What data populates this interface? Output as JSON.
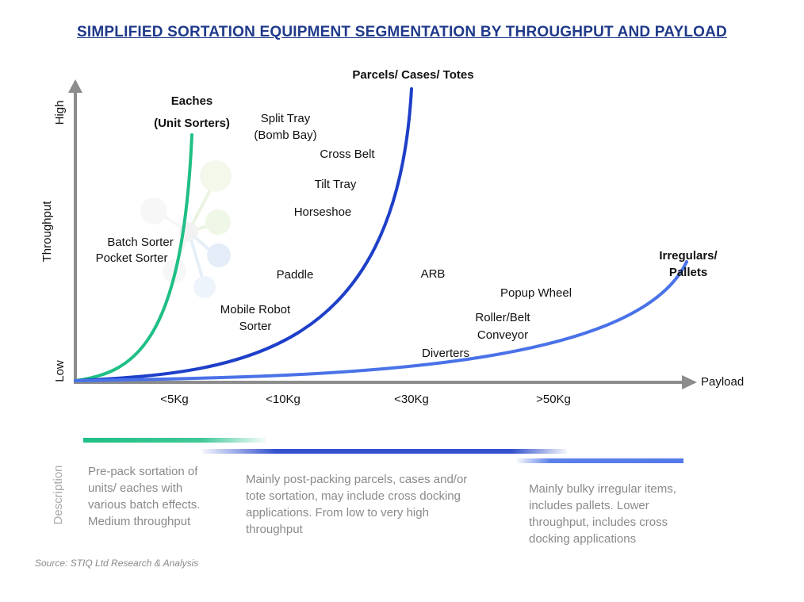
{
  "title": "SIMPLIFIED SORTATION EQUIPMENT SEGMENTATION BY THROUGHPUT AND PAYLOAD",
  "axes": {
    "y_label": "Throughput",
    "y_high": "High",
    "y_low": "Low",
    "x_label": "Payload",
    "x_ticks": [
      "<5Kg",
      "<10Kg",
      "<30Kg",
      ">50Kg"
    ]
  },
  "segments": [
    {
      "name_line1": "Eaches",
      "name_line2": "(Unit Sorters)",
      "color": "#1fbf85",
      "description": [
        "Pre-pack sortation of",
        "units/ eaches with",
        "various batch effects.",
        "Medium throughput"
      ]
    },
    {
      "name_line1": "Parcels/ Cases/ Totes",
      "color": "#1e3fc8",
      "description": [
        "Mainly post-packing parcels, cases and/or",
        "tote sortation, may include cross docking",
        "applications. From low to very high",
        "throughput"
      ]
    },
    {
      "name_line1": "Irregulars/",
      "name_line2": "Pallets",
      "color": "#4a72e8",
      "description": [
        "Mainly bulky irregular items,",
        "includes pallets. Lower",
        "throughput, includes cross",
        "docking applications"
      ]
    }
  ],
  "equipment": {
    "split_tray": [
      "Split Tray",
      "(Bomb Bay)"
    ],
    "cross_belt": "Cross Belt",
    "tilt_tray": "Tilt Tray",
    "horseshoe": "Horseshoe",
    "batch_sorter": "Batch Sorter",
    "pocket_sorter": "Pocket Sorter",
    "paddle": "Paddle",
    "mobile_robot": [
      "Mobile Robot",
      "Sorter"
    ],
    "arb": "ARB",
    "popup_wheel": "Popup Wheel",
    "roller_belt": [
      "Roller/Belt",
      "Conveyor"
    ],
    "diverters": "Diverters"
  },
  "description_label": "Description",
  "source": "Source: STIQ Ltd Research & Analysis"
}
